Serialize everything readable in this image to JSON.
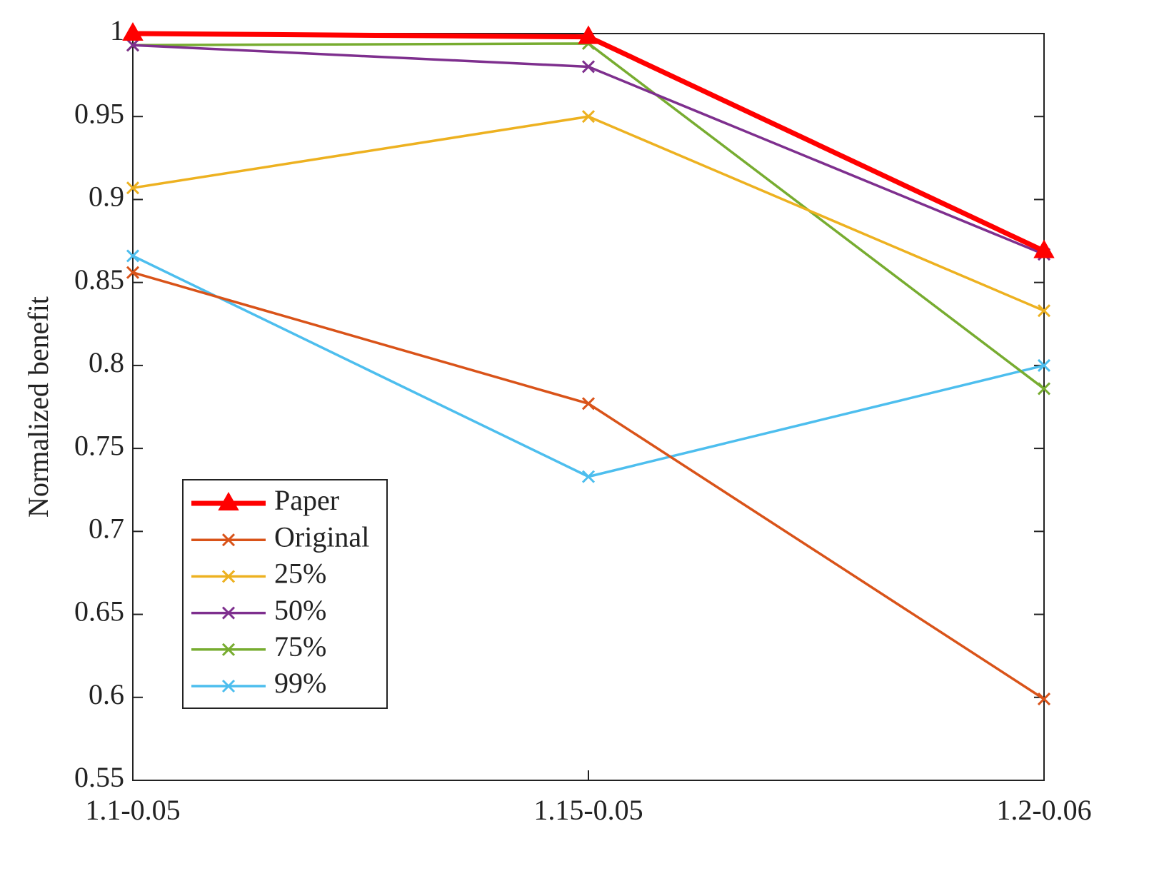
{
  "chart_data": {
    "type": "line",
    "y_label": "Normalized benefit",
    "categories": [
      "1.1-0.05",
      "1.15-0.05",
      "1.2-0.06"
    ],
    "ylim": [
      0.55,
      1
    ],
    "yticks": [
      0.55,
      0.6,
      0.65,
      0.7,
      0.75,
      0.8,
      0.85,
      0.9,
      0.95,
      1
    ],
    "grid": false,
    "legend": "lower-left",
    "series": [
      {
        "name": "Paper",
        "color": "#ff0000",
        "marker": "triangle",
        "values": [
          1.0,
          0.998,
          0.869
        ]
      },
      {
        "name": "Original",
        "color": "#d95319",
        "marker": "x",
        "values": [
          0.856,
          0.777,
          0.599
        ]
      },
      {
        "name": "25%",
        "color": "#edb120",
        "marker": "x",
        "values": [
          0.907,
          0.95,
          0.833
        ]
      },
      {
        "name": "50%",
        "color": "#7e2f8e",
        "marker": "x",
        "values": [
          0.993,
          0.98,
          0.867
        ]
      },
      {
        "name": "75%",
        "color": "#77ac30",
        "marker": "x",
        "values": [
          0.993,
          0.994,
          0.786
        ]
      },
      {
        "name": "99%",
        "color": "#4dbeee",
        "marker": "x",
        "values": [
          0.866,
          0.733,
          0.8
        ]
      }
    ]
  }
}
